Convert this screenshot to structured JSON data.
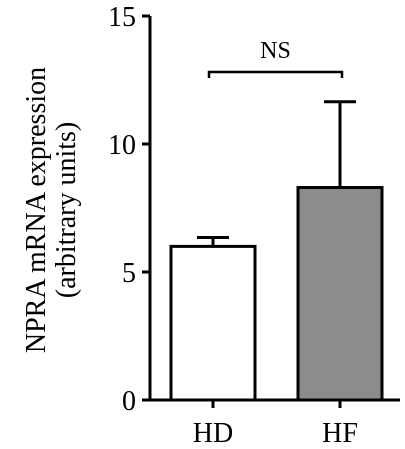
{
  "chart_data": {
    "type": "bar",
    "categories": [
      "HD",
      "HF"
    ],
    "values": [
      6.0,
      8.3
    ],
    "error_upper": [
      0.35,
      3.35
    ],
    "bar_colors": [
      "#ffffff",
      "#8c8c8c"
    ],
    "ylabel_line1": "NPRA mRNA expression",
    "ylabel_line2": "(arbitrary units)",
    "ylim": [
      0,
      15
    ],
    "yticks": [
      0,
      5,
      10,
      15
    ],
    "annotation": "NS"
  }
}
